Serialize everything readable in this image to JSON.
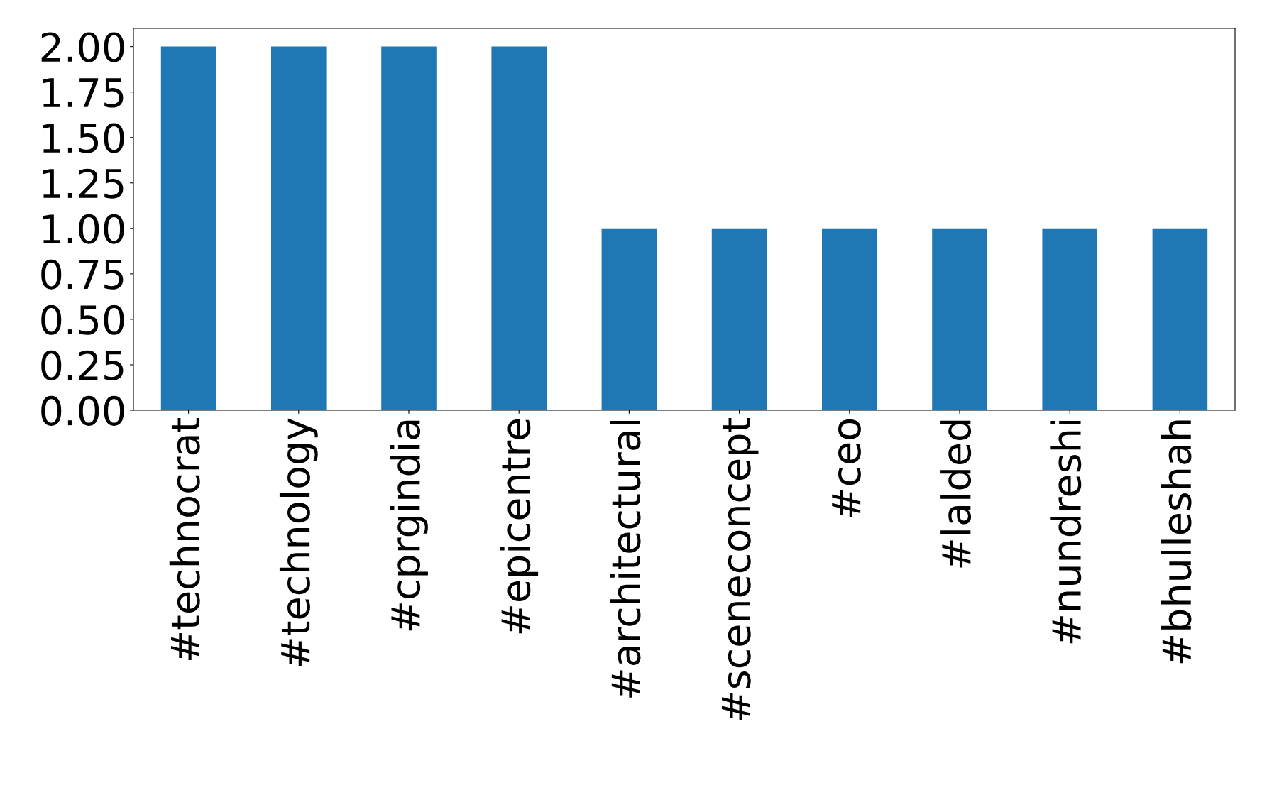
{
  "chart_data": {
    "type": "bar",
    "categories": [
      "#technocrat",
      "#technology",
      "#cprgindia",
      "#epicentre",
      "#architectural",
      "#sceneconcept",
      "#ceo",
      "#lalded",
      "#nundreshi",
      "#bhulleshah"
    ],
    "values": [
      2,
      2,
      2,
      2,
      1,
      1,
      1,
      1,
      1,
      1
    ],
    "color": "#1f77b4",
    "ylim": [
      0,
      2.1
    ],
    "yticks": [
      {
        "value": 0,
        "label": "0.00"
      },
      {
        "value": 0.25,
        "label": "0.25"
      },
      {
        "value": 0.5,
        "label": "0.50"
      },
      {
        "value": 0.75,
        "label": "0.75"
      },
      {
        "value": 1,
        "label": "1.00"
      },
      {
        "value": 1.25,
        "label": "1.25"
      },
      {
        "value": 1.5,
        "label": "1.50"
      },
      {
        "value": 1.75,
        "label": "1.75"
      },
      {
        "value": 2,
        "label": "2.00"
      }
    ],
    "grid": false
  }
}
